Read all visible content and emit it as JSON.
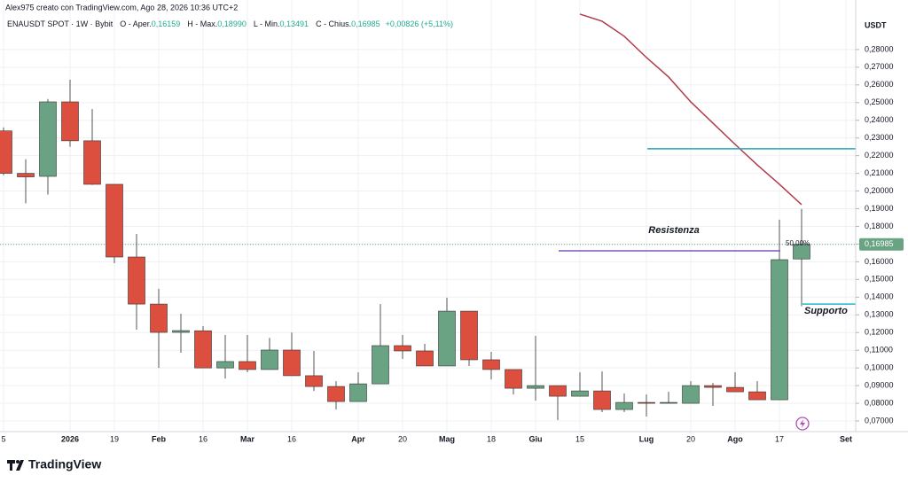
{
  "chart_data": {
    "type": "candlestick",
    "credit": "Alex975 creato con TradingView.com, Ago 28, 2026 10:36 UTC+2",
    "symbol": "ENAUSDT SPOT · 1W · Bybit",
    "ohlc_text": [
      {
        "label": "O - Aper.",
        "value": "0,16159"
      },
      {
        "label": "H - Max.",
        "value": "0,18990"
      },
      {
        "label": "L - Min.",
        "value": "0,13491"
      },
      {
        "label": "C - Chius.",
        "value": "0,16985"
      }
    ],
    "change_text": "+0,00826 (+5,11%)",
    "currency": "USDT",
    "brand": "TradingView",
    "categories": [
      "5",
      null,
      null,
      "2026",
      null,
      "19",
      null,
      "Feb",
      null,
      "16",
      null,
      "Mar",
      null,
      "16",
      null,
      null,
      "Apr",
      null,
      "20",
      null,
      "Mag",
      null,
      "18",
      null,
      "Giu",
      null,
      "15",
      null,
      null,
      "Lug",
      null,
      "20",
      null,
      "Ago",
      null,
      "17",
      null,
      null,
      "Set"
    ],
    "open": [
      0.234,
      0.21,
      0.2083,
      0.2504,
      0.2284,
      0.2038,
      0.1627,
      0.1361,
      0.1201,
      0.121,
      0.1,
      0.1036,
      0.0991,
      0.1101,
      0.0956,
      0.0895,
      0.081,
      0.091,
      0.1126,
      0.1096,
      0.1011,
      0.1321,
      0.1046,
      0.0991,
      0.0885,
      0.09,
      0.084,
      0.087,
      0.0765,
      0.0805,
      0.08,
      0.08,
      0.09,
      0.089,
      0.0865,
      0.082,
      0.16159,
      null,
      null
    ],
    "high": [
      0.236,
      0.218,
      0.252,
      0.263,
      0.2464,
      0.2038,
      0.1757,
      0.1447,
      0.1306,
      0.1236,
      0.1186,
      0.1186,
      0.117,
      0.12,
      0.1096,
      0.0925,
      0.0975,
      0.1361,
      0.1186,
      0.1136,
      0.1396,
      0.1321,
      0.1091,
      0.0991,
      0.1181,
      0.09,
      0.0975,
      0.098,
      0.0855,
      0.085,
      0.0865,
      0.0925,
      0.0915,
      0.0975,
      0.0925,
      0.1838,
      0.1899,
      null,
      null
    ],
    "low": [
      0.209,
      0.193,
      0.198,
      0.225,
      0.2035,
      0.1592,
      0.1216,
      0.1,
      0.1086,
      0.1,
      0.094,
      0.0976,
      0.0991,
      0.0956,
      0.087,
      0.0765,
      0.081,
      0.091,
      0.1051,
      0.1011,
      0.1011,
      0.1011,
      0.0935,
      0.085,
      0.0815,
      0.0705,
      0.084,
      0.075,
      0.075,
      0.0725,
      0.08,
      0.08,
      0.0785,
      0.0865,
      0.082,
      0.082,
      0.13491,
      null,
      null
    ],
    "close": [
      0.21,
      0.208,
      0.2504,
      0.2284,
      0.2038,
      0.1627,
      0.1361,
      0.1201,
      0.1211,
      0.1,
      0.1036,
      0.0991,
      0.1101,
      0.0956,
      0.0895,
      0.081,
      0.091,
      0.1126,
      0.1096,
      0.1011,
      0.1321,
      0.1046,
      0.0991,
      0.0885,
      0.09,
      0.084,
      0.087,
      0.0765,
      0.0805,
      0.08,
      0.0805,
      0.09,
      0.089,
      0.0865,
      0.082,
      0.1612,
      0.16985,
      null,
      null
    ],
    "up_color": "#6aa383",
    "down_color": "#dc4f3e",
    "ma": {
      "color": "#b23a4c",
      "values": [
        null,
        null,
        null,
        null,
        null,
        null,
        null,
        null,
        null,
        null,
        null,
        null,
        null,
        null,
        null,
        null,
        null,
        null,
        null,
        null,
        null,
        null,
        null,
        null,
        null,
        null,
        0.3,
        0.296,
        0.2875,
        0.2755,
        0.2645,
        0.2504,
        0.2384,
        0.2264,
        0.2148,
        0.2038,
        0.1923,
        null,
        null
      ]
    },
    "levels": [
      {
        "value": 0.2239,
        "color": "#2aa6b8"
      },
      {
        "value": 0.1662,
        "color": "#7e57c2",
        "label": "Resistenza",
        "note": "50,00%"
      },
      {
        "value": 0.1361,
        "color": "#26b6cc",
        "label": "Supporto"
      }
    ],
    "last_price": {
      "value": 0.16985,
      "label": "0,16985"
    },
    "ylim": [
      0.064,
      0.308
    ],
    "yticks": [
      {
        "value": 0.07,
        "label": "0,07000"
      },
      {
        "value": 0.08,
        "label": "0,08000"
      },
      {
        "value": 0.09,
        "label": "0,09000"
      },
      {
        "value": 0.1,
        "label": "0,10000"
      },
      {
        "value": 0.11,
        "label": "0,11000"
      },
      {
        "value": 0.12,
        "label": "0,12000"
      },
      {
        "value": 0.13,
        "label": "0,13000"
      },
      {
        "value": 0.14,
        "label": "0,14000"
      },
      {
        "value": 0.15,
        "label": "0,15000"
      },
      {
        "value": 0.16,
        "label": "0,16000"
      },
      {
        "value": 0.17,
        "label": "0,17000"
      },
      {
        "value": 0.18,
        "label": "0,18000"
      },
      {
        "value": 0.19,
        "label": "0,19000"
      },
      {
        "value": 0.2,
        "label": "0,20000"
      },
      {
        "value": 0.21,
        "label": "0,21000"
      },
      {
        "value": 0.22,
        "label": "0,22000"
      },
      {
        "value": 0.23,
        "label": "0,23000"
      },
      {
        "value": 0.24,
        "label": "0,24000"
      },
      {
        "value": 0.25,
        "label": "0,25000"
      },
      {
        "value": 0.26,
        "label": "0,26000"
      },
      {
        "value": 0.27,
        "label": "0,27000"
      },
      {
        "value": 0.28,
        "label": "0,28000"
      }
    ],
    "grid": true
  }
}
